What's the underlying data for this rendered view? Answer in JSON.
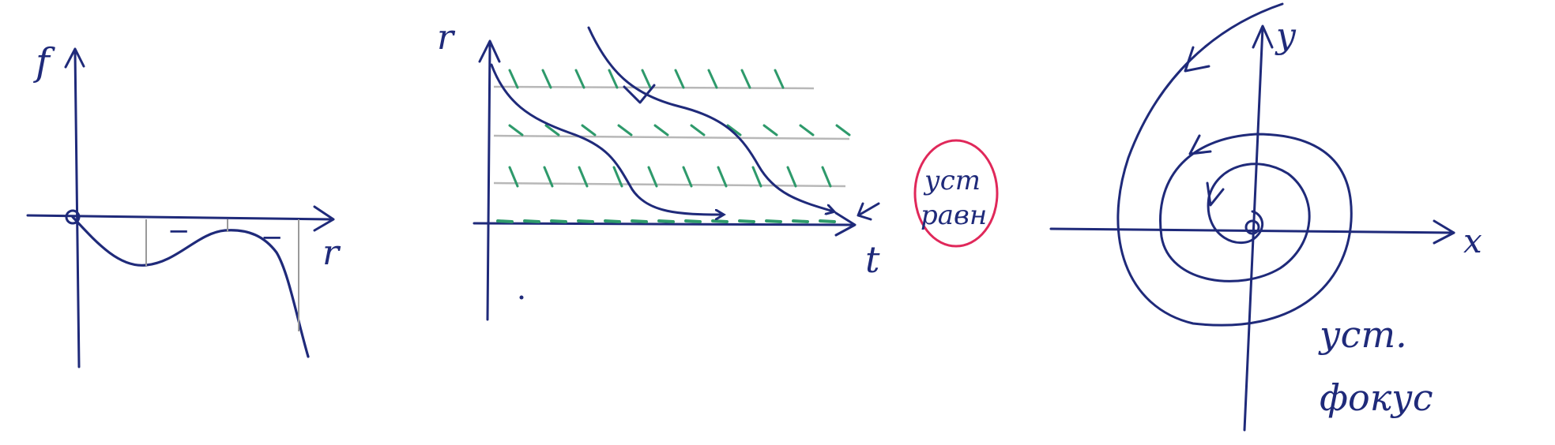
{
  "colors": {
    "ink": "#1f2a7a",
    "slope_marks": "#2e9a6b",
    "grid_lines": "#b8b8b8",
    "circle": "#e0285a"
  },
  "panel_left": {
    "axis_y_label": "f",
    "axis_x_label": "r",
    "sign_marks": [
      "−",
      "−"
    ]
  },
  "panel_middle": {
    "axis_y_label": "r",
    "axis_x_label": "t",
    "note_line1": "уст",
    "note_line2": "равн"
  },
  "panel_right": {
    "axis_x_label": "x",
    "axis_y_label": "y",
    "note_line1": "уст.",
    "note_line2": "фокус"
  }
}
